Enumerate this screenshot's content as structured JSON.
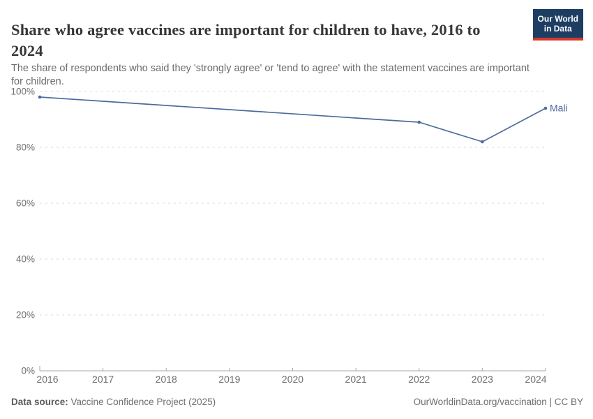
{
  "header": {
    "title": "Share who agree vaccines are important for children to have, 2016 to 2024",
    "subtitle": "The share of respondents who said they 'strongly agree' or 'tend to agree' with the statement vaccines are important for children.",
    "logo": {
      "line1": "Our World",
      "line2": "in Data"
    }
  },
  "footer": {
    "datasource_label": "Data source:",
    "datasource_value": "Vaccine Confidence Project (2025)",
    "attribution": "OurWorldinData.org/vaccination | CC BY"
  },
  "colors": {
    "line": "#4C6A9C",
    "logo_background": "#1d3d63",
    "logo_red_bar": "#d4372b",
    "gridline": "#dadada",
    "axis_line": "#a8a8a8",
    "tick_label": "#6e6e6e",
    "title_text": "#383636",
    "subtitle_text": "#6b6b6b"
  },
  "chart_data": {
    "type": "line",
    "title": "Share who agree vaccines are important for children to have, 2016 to 2024",
    "entity": "Mali",
    "xlabel": "",
    "ylabel": "",
    "xlim": [
      2016,
      2024
    ],
    "ylim": [
      0,
      100
    ],
    "x_ticks": [
      2016,
      2017,
      2018,
      2019,
      2020,
      2021,
      2022,
      2023,
      2024
    ],
    "y_ticks": [
      0,
      20,
      40,
      60,
      80,
      100
    ],
    "y_tick_suffix": "%",
    "grid": "horizontal-dashed",
    "legend": "end-of-line-label",
    "series": [
      {
        "name": "Mali",
        "color": "#4C6A9C",
        "points": [
          {
            "x": 2016,
            "y": 98
          },
          {
            "x": 2022,
            "y": 89
          },
          {
            "x": 2023,
            "y": 82
          },
          {
            "x": 2024,
            "y": 94
          }
        ]
      }
    ]
  }
}
